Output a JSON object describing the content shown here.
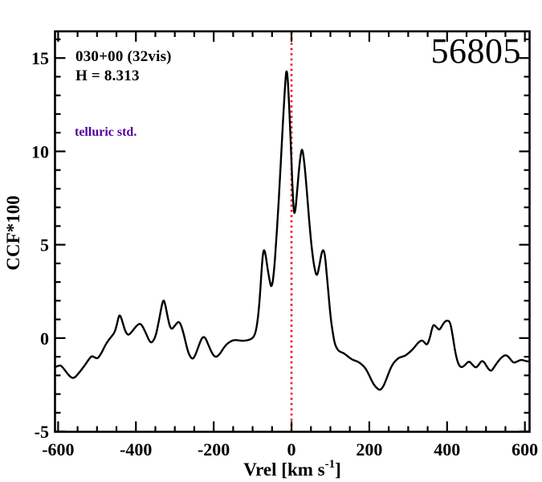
{
  "figure": {
    "title": "56805",
    "annotation_line1": "030+00 (32vis)",
    "annotation_line2": "H = 8.313",
    "tag": "telluric std.",
    "tag_color": "#53009d",
    "line_color": "#000000",
    "marker_line_color": "#ff0000",
    "background_color": "#ffffff"
  },
  "chart_data": {
    "type": "line",
    "title": "56805",
    "xlabel": "Vrel [km s-1]",
    "xlabel_parts": {
      "pre": "Vrel [km s",
      "sup": "-1",
      "post": "]"
    },
    "ylabel": "CCF*100",
    "xlim": [
      -608,
      612
    ],
    "ylim": [
      -5.02,
      16.43
    ],
    "x_major_ticks": [
      -600,
      -400,
      -200,
      0,
      200,
      400,
      600
    ],
    "x_minor_step": 50,
    "y_major_ticks": [
      -5,
      0,
      5,
      10,
      15
    ],
    "y_minor_step": 1,
    "grid": false,
    "legend": false,
    "vline": {
      "x": 0,
      "style": "dotted",
      "color": "#ff0000"
    },
    "annotations": [
      "030+00 (32vis)",
      "H = 8.313",
      "telluric std.",
      "56805"
    ],
    "series": [
      {
        "name": "CCF",
        "color": "#000000",
        "points": [
          [
            -608,
            -1.55
          ],
          [
            -601,
            -1.5
          ],
          [
            -594,
            -1.45
          ],
          [
            -587,
            -1.6
          ],
          [
            -578,
            -1.85
          ],
          [
            -570,
            -2.05
          ],
          [
            -563,
            -2.15
          ],
          [
            -556,
            -2.1
          ],
          [
            -548,
            -1.9
          ],
          [
            -540,
            -1.7
          ],
          [
            -531,
            -1.45
          ],
          [
            -523,
            -1.2
          ],
          [
            -516,
            -1.0
          ],
          [
            -511,
            -0.97
          ],
          [
            -505,
            -1.05
          ],
          [
            -499,
            -1.1
          ],
          [
            -493,
            -0.95
          ],
          [
            -486,
            -0.7
          ],
          [
            -478,
            -0.35
          ],
          [
            -470,
            -0.1
          ],
          [
            -462,
            0.1
          ],
          [
            -455,
            0.3
          ],
          [
            -449,
            0.7
          ],
          [
            -445,
            1.1
          ],
          [
            -442,
            1.25
          ],
          [
            -438,
            1.1
          ],
          [
            -433,
            0.75
          ],
          [
            -427,
            0.35
          ],
          [
            -421,
            0.17
          ],
          [
            -416,
            0.2
          ],
          [
            -408,
            0.4
          ],
          [
            -400,
            0.62
          ],
          [
            -393,
            0.75
          ],
          [
            -388,
            0.77
          ],
          [
            -382,
            0.6
          ],
          [
            -374,
            0.25
          ],
          [
            -367,
            -0.1
          ],
          [
            -361,
            -0.26
          ],
          [
            -355,
            -0.15
          ],
          [
            -348,
            0.2
          ],
          [
            -341,
            0.9
          ],
          [
            -335,
            1.6
          ],
          [
            -330,
            2.05
          ],
          [
            -326,
            1.95
          ],
          [
            -320,
            1.3
          ],
          [
            -314,
            0.7
          ],
          [
            -309,
            0.48
          ],
          [
            -304,
            0.55
          ],
          [
            -297,
            0.75
          ],
          [
            -291,
            0.88
          ],
          [
            -286,
            0.8
          ],
          [
            -280,
            0.45
          ],
          [
            -273,
            -0.15
          ],
          [
            -266,
            -0.75
          ],
          [
            -259,
            -1.05
          ],
          [
            -253,
            -1.12
          ],
          [
            -247,
            -0.9
          ],
          [
            -240,
            -0.5
          ],
          [
            -233,
            -0.1
          ],
          [
            -227,
            0.08
          ],
          [
            -221,
            0.0
          ],
          [
            -214,
            -0.35
          ],
          [
            -207,
            -0.7
          ],
          [
            -200,
            -0.95
          ],
          [
            -193,
            -1.02
          ],
          [
            -186,
            -0.9
          ],
          [
            -178,
            -0.65
          ],
          [
            -170,
            -0.4
          ],
          [
            -162,
            -0.25
          ],
          [
            -154,
            -0.15
          ],
          [
            -146,
            -0.1
          ],
          [
            -136,
            -0.12
          ],
          [
            -126,
            -0.15
          ],
          [
            -116,
            -0.13
          ],
          [
            -107,
            -0.08
          ],
          [
            -100,
            0.0
          ],
          [
            -95,
            0.15
          ],
          [
            -90,
            0.5
          ],
          [
            -85,
            1.3
          ],
          [
            -80,
            2.6
          ],
          [
            -76,
            3.9
          ],
          [
            -73,
            4.6
          ],
          [
            -70,
            4.75
          ],
          [
            -66,
            4.4
          ],
          [
            -60,
            3.5
          ],
          [
            -55,
            2.95
          ],
          [
            -52,
            2.72
          ],
          [
            -48,
            3.0
          ],
          [
            -44,
            3.8
          ],
          [
            -40,
            5.0
          ],
          [
            -35,
            6.6
          ],
          [
            -30,
            8.4
          ],
          [
            -25,
            10.4
          ],
          [
            -20,
            12.3
          ],
          [
            -16,
            13.7
          ],
          [
            -13,
            14.42
          ],
          [
            -10,
            14.0
          ],
          [
            -7,
            12.9
          ],
          [
            -4,
            11.4
          ],
          [
            0,
            9.4
          ],
          [
            3,
            7.8
          ],
          [
            6,
            6.8
          ],
          [
            8,
            6.65
          ],
          [
            11,
            7.0
          ],
          [
            15,
            8.0
          ],
          [
            20,
            9.2
          ],
          [
            24,
            9.9
          ],
          [
            27,
            10.15
          ],
          [
            30,
            9.9
          ],
          [
            34,
            9.2
          ],
          [
            39,
            8.0
          ],
          [
            45,
            6.4
          ],
          [
            51,
            5.0
          ],
          [
            57,
            4.0
          ],
          [
            62,
            3.45
          ],
          [
            66,
            3.35
          ],
          [
            70,
            3.7
          ],
          [
            75,
            4.3
          ],
          [
            79,
            4.68
          ],
          [
            83,
            4.72
          ],
          [
            87,
            4.3
          ],
          [
            91,
            3.3
          ],
          [
            96,
            2.2
          ],
          [
            101,
            1.0
          ],
          [
            106,
            0.3
          ],
          [
            111,
            -0.3
          ],
          [
            118,
            -0.62
          ],
          [
            126,
            -0.75
          ],
          [
            134,
            -0.8
          ],
          [
            143,
            -0.95
          ],
          [
            152,
            -1.1
          ],
          [
            161,
            -1.2
          ],
          [
            170,
            -1.25
          ],
          [
            180,
            -1.4
          ],
          [
            190,
            -1.6
          ],
          [
            200,
            -2.0
          ],
          [
            210,
            -2.45
          ],
          [
            220,
            -2.7
          ],
          [
            228,
            -2.8
          ],
          [
            236,
            -2.6
          ],
          [
            244,
            -2.2
          ],
          [
            252,
            -1.75
          ],
          [
            260,
            -1.4
          ],
          [
            268,
            -1.2
          ],
          [
            276,
            -1.05
          ],
          [
            284,
            -1.0
          ],
          [
            292,
            -0.95
          ],
          [
            300,
            -0.82
          ],
          [
            308,
            -0.68
          ],
          [
            316,
            -0.5
          ],
          [
            324,
            -0.28
          ],
          [
            334,
            -0.1
          ],
          [
            341,
            -0.2
          ],
          [
            348,
            -0.4
          ],
          [
            355,
            -0.05
          ],
          [
            361,
            0.5
          ],
          [
            365,
            0.73
          ],
          [
            371,
            0.62
          ],
          [
            377,
            0.48
          ],
          [
            381,
            0.44
          ],
          [
            388,
            0.7
          ],
          [
            395,
            0.9
          ],
          [
            402,
            0.95
          ],
          [
            408,
            0.85
          ],
          [
            414,
            0.2
          ],
          [
            422,
            -0.9
          ],
          [
            429,
            -1.4
          ],
          [
            436,
            -1.58
          ],
          [
            444,
            -1.5
          ],
          [
            452,
            -1.3
          ],
          [
            458,
            -1.25
          ],
          [
            466,
            -1.45
          ],
          [
            474,
            -1.6
          ],
          [
            481,
            -1.45
          ],
          [
            489,
            -1.2
          ],
          [
            496,
            -1.3
          ],
          [
            504,
            -1.6
          ],
          [
            513,
            -1.8
          ],
          [
            521,
            -1.55
          ],
          [
            531,
            -1.25
          ],
          [
            541,
            -1.0
          ],
          [
            551,
            -0.9
          ],
          [
            558,
            -1.0
          ],
          [
            565,
            -1.2
          ],
          [
            571,
            -1.33
          ],
          [
            578,
            -1.28
          ],
          [
            585,
            -1.2
          ],
          [
            592,
            -1.16
          ],
          [
            600,
            -1.22
          ],
          [
            608,
            -1.25
          ]
        ]
      }
    ]
  }
}
